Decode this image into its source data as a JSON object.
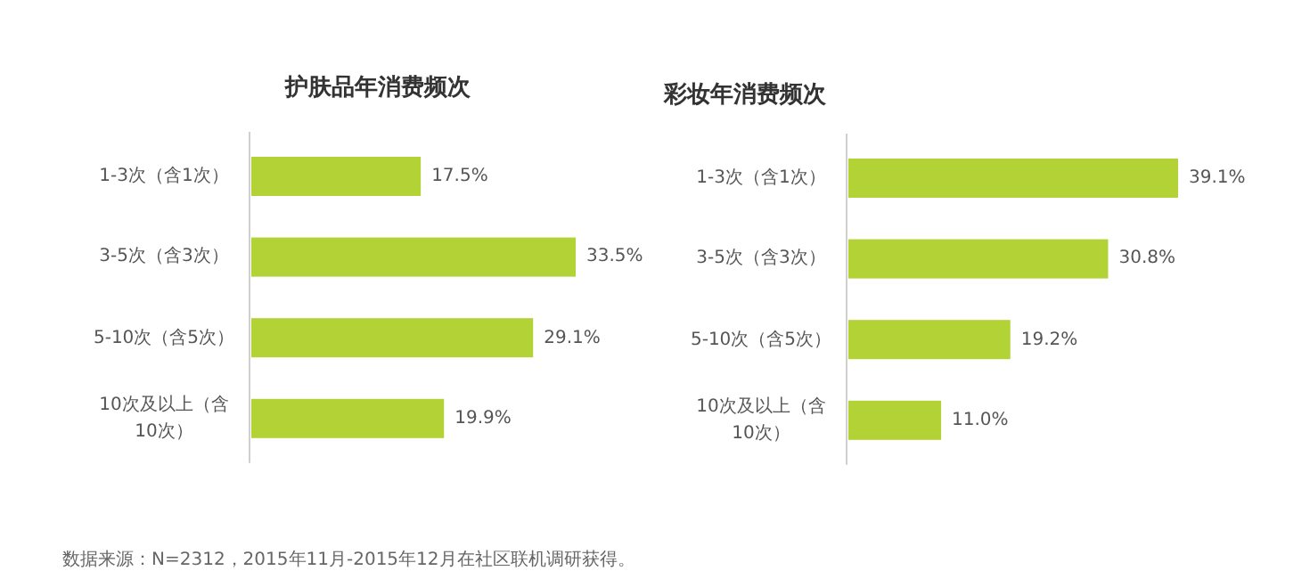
{
  "chart_data": [
    {
      "type": "bar",
      "orientation": "horizontal",
      "title": "护肤品年消费频次",
      "categories": [
        "1-3次（含1次）",
        "3-5次（含3次）",
        "5-10次（含5次）",
        "10次及以上（含10次）"
      ],
      "values": [
        17.5,
        33.5,
        29.1,
        19.9
      ],
      "value_labels": [
        "17.5%",
        "33.5%",
        "29.1%",
        "19.9%"
      ],
      "color": "#b3d235",
      "annotations": [
        "数据来源：N=2312，2015年11月-2015年12月在社区联机调研获得。"
      ]
    },
    {
      "type": "bar",
      "orientation": "horizontal",
      "title": "彩妆年消费频次",
      "categories": [
        "1-3次（含1次）",
        "3-5次（含3次）",
        "5-10次（含5次）",
        "10次及以上（含10次）"
      ],
      "values": [
        39.1,
        30.8,
        19.2,
        11.0
      ],
      "value_labels": [
        "39.1%",
        "30.8%",
        "19.2%",
        "11.0%"
      ],
      "color": "#b3d235"
    }
  ]
}
